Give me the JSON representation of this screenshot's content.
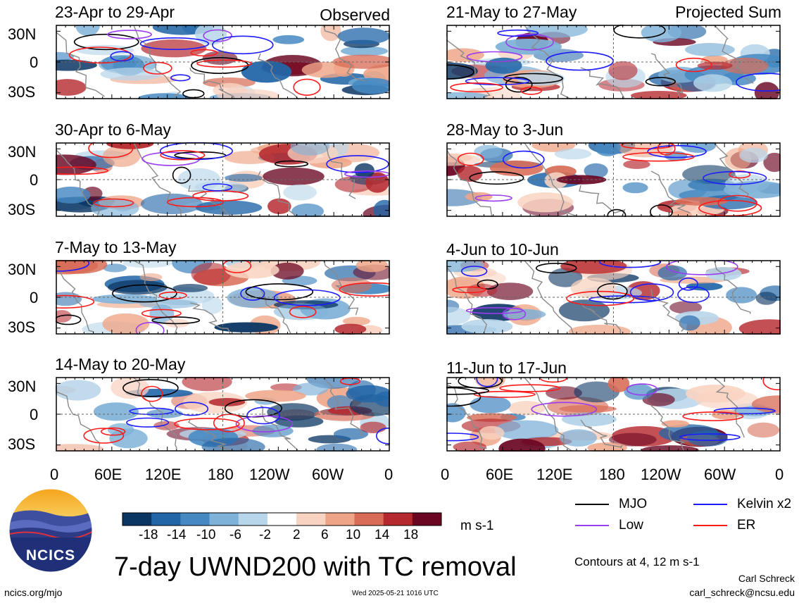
{
  "header": {
    "left_tag": "Observed",
    "right_tag": "Projected Sum"
  },
  "panels_left": [
    {
      "title": "23-Apr to 29-Apr"
    },
    {
      "title": "30-Apr to 6-May"
    },
    {
      "title": "7-May to 13-May"
    },
    {
      "title": "14-May to 20-May"
    }
  ],
  "panels_right": [
    {
      "title": "21-May to 27-May"
    },
    {
      "title": "28-May to 3-Jun"
    },
    {
      "title": "4-Jun to 10-Jun"
    },
    {
      "title": "11-Jun to 17-Jun"
    }
  ],
  "axes": {
    "lat_labels": [
      "30N",
      "0",
      "30S"
    ],
    "lon_labels": [
      "0",
      "60E",
      "120E",
      "180",
      "120W",
      "60W",
      "0"
    ]
  },
  "colorbar": {
    "tick_labels": [
      "-18",
      "-14",
      "-10",
      "-6",
      "-2",
      "2",
      "6",
      "10",
      "14",
      "18"
    ],
    "units": "m s-1",
    "colors": [
      "#0b3563",
      "#2266a8",
      "#4689c2",
      "#7fb2d8",
      "#b8d6ea",
      "#ffffff",
      "#f9d3c1",
      "#eea587",
      "#d86c57",
      "#b5282e",
      "#6a0622"
    ]
  },
  "legend": {
    "items": [
      {
        "label": "MJO",
        "color": "#000000"
      },
      {
        "label": "Kelvin x2",
        "color": "#1c1cff"
      },
      {
        "label": "Low",
        "color": "#9a3cf0"
      },
      {
        "label": "ER",
        "color": "#ff1a1a"
      }
    ],
    "note": "Contours at 4, 12 m s-1"
  },
  "footer": {
    "title": "7-day UWND200 with TC removal",
    "site": "ncics.org/mjo",
    "timestamp": "Wed 2025-05-21 1016 UTC",
    "author": "Carl Schreck",
    "email": "carl_schreck@ncsu.edu",
    "logo_text": "NCICS"
  }
}
